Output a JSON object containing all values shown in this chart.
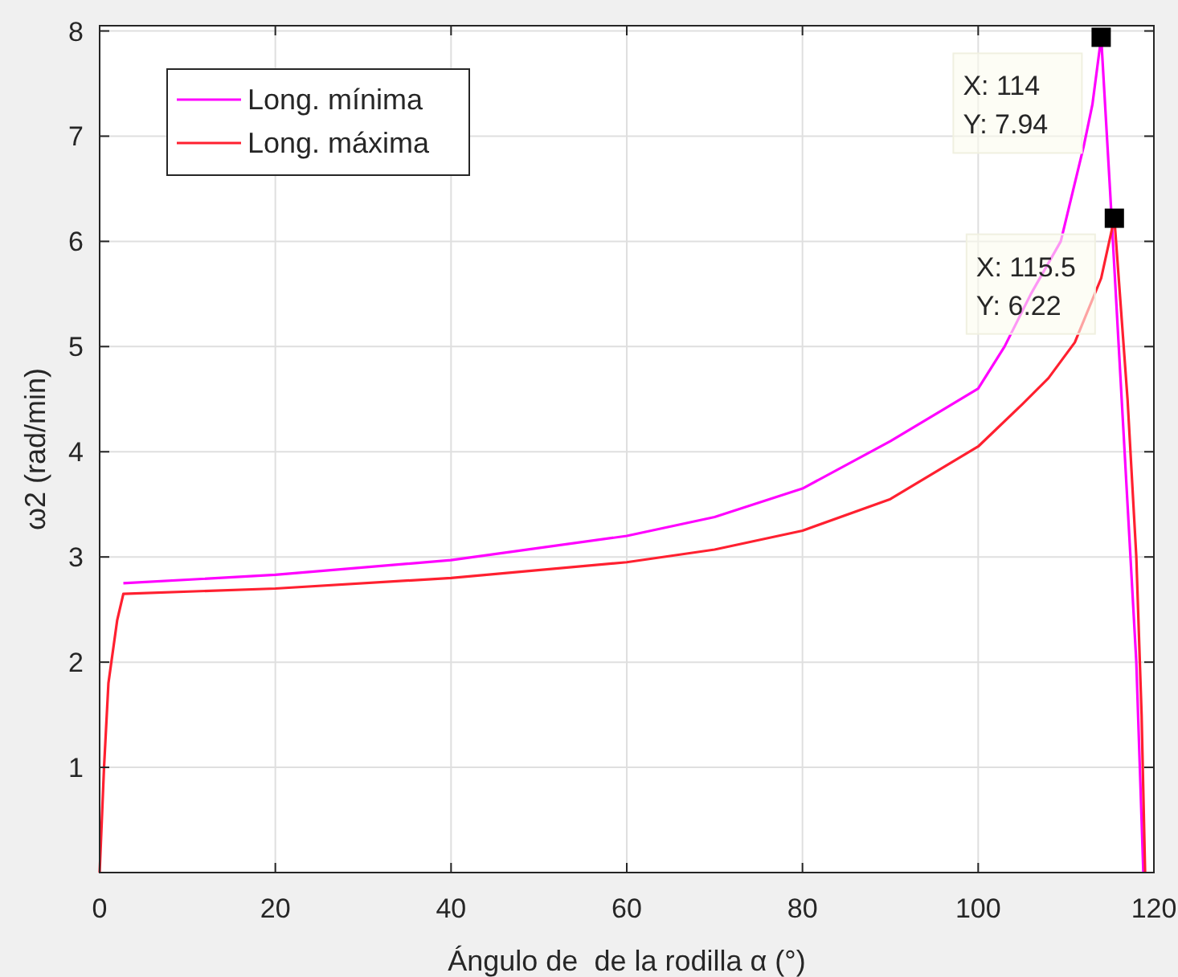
{
  "chart_data": {
    "type": "line",
    "xlabel": "Ángulo de  de la rodilla α (°)",
    "ylabel": "ω2 (rad/min)",
    "xlim": [
      0,
      120
    ],
    "ylim": [
      0,
      8.05
    ],
    "xticks": [
      0,
      20,
      40,
      60,
      80,
      100,
      120
    ],
    "yticks": [
      1,
      2,
      3,
      4,
      5,
      6,
      7,
      8
    ],
    "grid": true,
    "legend": "top left",
    "line_style": "solid",
    "marker": "none",
    "series": [
      {
        "name": "Long. mínima",
        "color": "#ff00ff",
        "x": [
          2.7,
          20,
          40,
          60,
          70,
          80,
          90,
          100,
          103,
          106,
          109.4,
          112,
          113,
          114,
          115,
          116,
          117,
          118,
          118.8
        ],
        "values": [
          2.75,
          2.83,
          2.97,
          3.2,
          3.38,
          3.65,
          4.1,
          4.6,
          5.0,
          5.5,
          6.0,
          6.9,
          7.3,
          7.94,
          6.5,
          5,
          3.5,
          2,
          0
        ]
      },
      {
        "name": "Long. máxima",
        "color": "#ff2030",
        "x": [
          0,
          0.5,
          1,
          2,
          2.7,
          20,
          40,
          60,
          70,
          80,
          90,
          100,
          105,
          108,
          111,
          114,
          115.5,
          117,
          118,
          118.6,
          119
        ],
        "values": [
          0,
          1,
          1.8,
          2.4,
          2.65,
          2.7,
          2.8,
          2.95,
          3.07,
          3.25,
          3.55,
          4.05,
          4.45,
          4.7,
          5.04,
          5.65,
          6.22,
          4.5,
          3,
          1.5,
          0
        ]
      }
    ],
    "annotations": [
      {
        "text": "X: 114\nY: 7.94",
        "x": 114,
        "y": 7.94
      },
      {
        "text": "X: 115.5\nY: 6.22",
        "x": 115.5,
        "y": 6.22
      }
    ]
  }
}
